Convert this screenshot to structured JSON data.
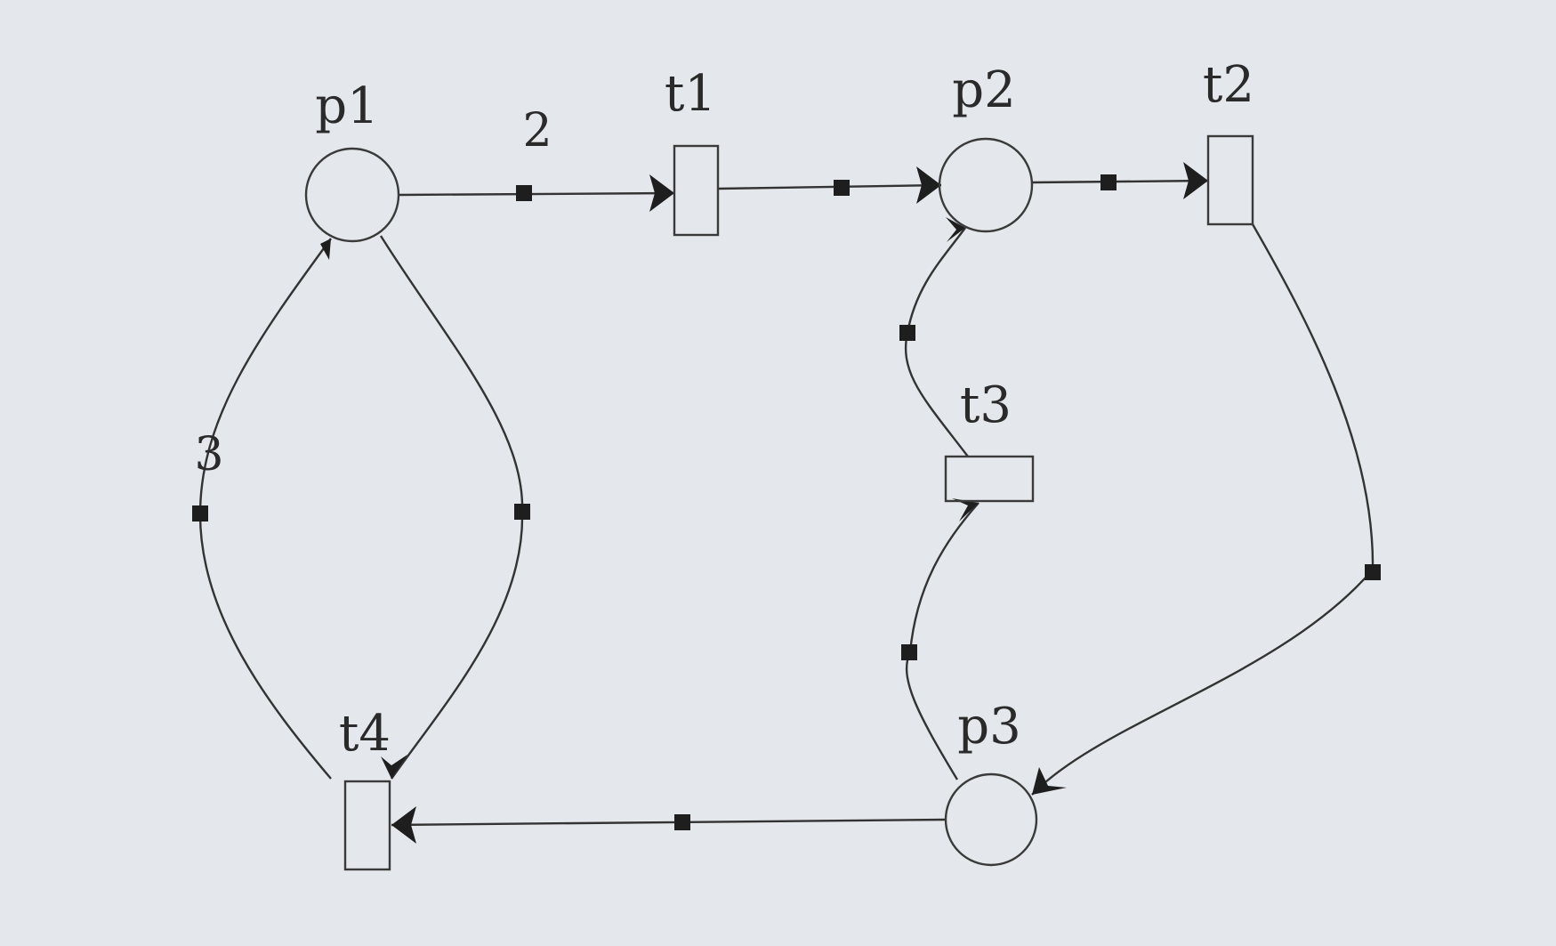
{
  "diagram": {
    "type": "petri-net",
    "places": [
      {
        "id": "p1",
        "label": "p1"
      },
      {
        "id": "p2",
        "label": "p2"
      },
      {
        "id": "p3",
        "label": "p3"
      }
    ],
    "transitions": [
      {
        "id": "t1",
        "label": "t1"
      },
      {
        "id": "t2",
        "label": "t2"
      },
      {
        "id": "t3",
        "label": "t3"
      },
      {
        "id": "t4",
        "label": "t4"
      }
    ],
    "arcs": [
      {
        "id": "p1-t1",
        "from": "p1",
        "to": "t1",
        "weight": "2"
      },
      {
        "id": "t1-p2",
        "from": "t1",
        "to": "p2",
        "weight": ""
      },
      {
        "id": "p2-t2",
        "from": "p2",
        "to": "t2",
        "weight": ""
      },
      {
        "id": "t2-p3",
        "from": "t2",
        "to": "p3",
        "weight": ""
      },
      {
        "id": "p3-t3",
        "from": "p3",
        "to": "t3",
        "weight": ""
      },
      {
        "id": "t3-p2",
        "from": "t3",
        "to": "p2",
        "weight": ""
      },
      {
        "id": "p3-t4",
        "from": "p3",
        "to": "t4",
        "weight": ""
      },
      {
        "id": "p1-t4",
        "from": "p1",
        "to": "t4",
        "weight": ""
      },
      {
        "id": "t4-p1",
        "from": "t4",
        "to": "p1",
        "weight": "3"
      }
    ]
  },
  "colors": {
    "background": "#e4e7eb",
    "stroke": "#333333",
    "marker": "#1e1e1e"
  }
}
